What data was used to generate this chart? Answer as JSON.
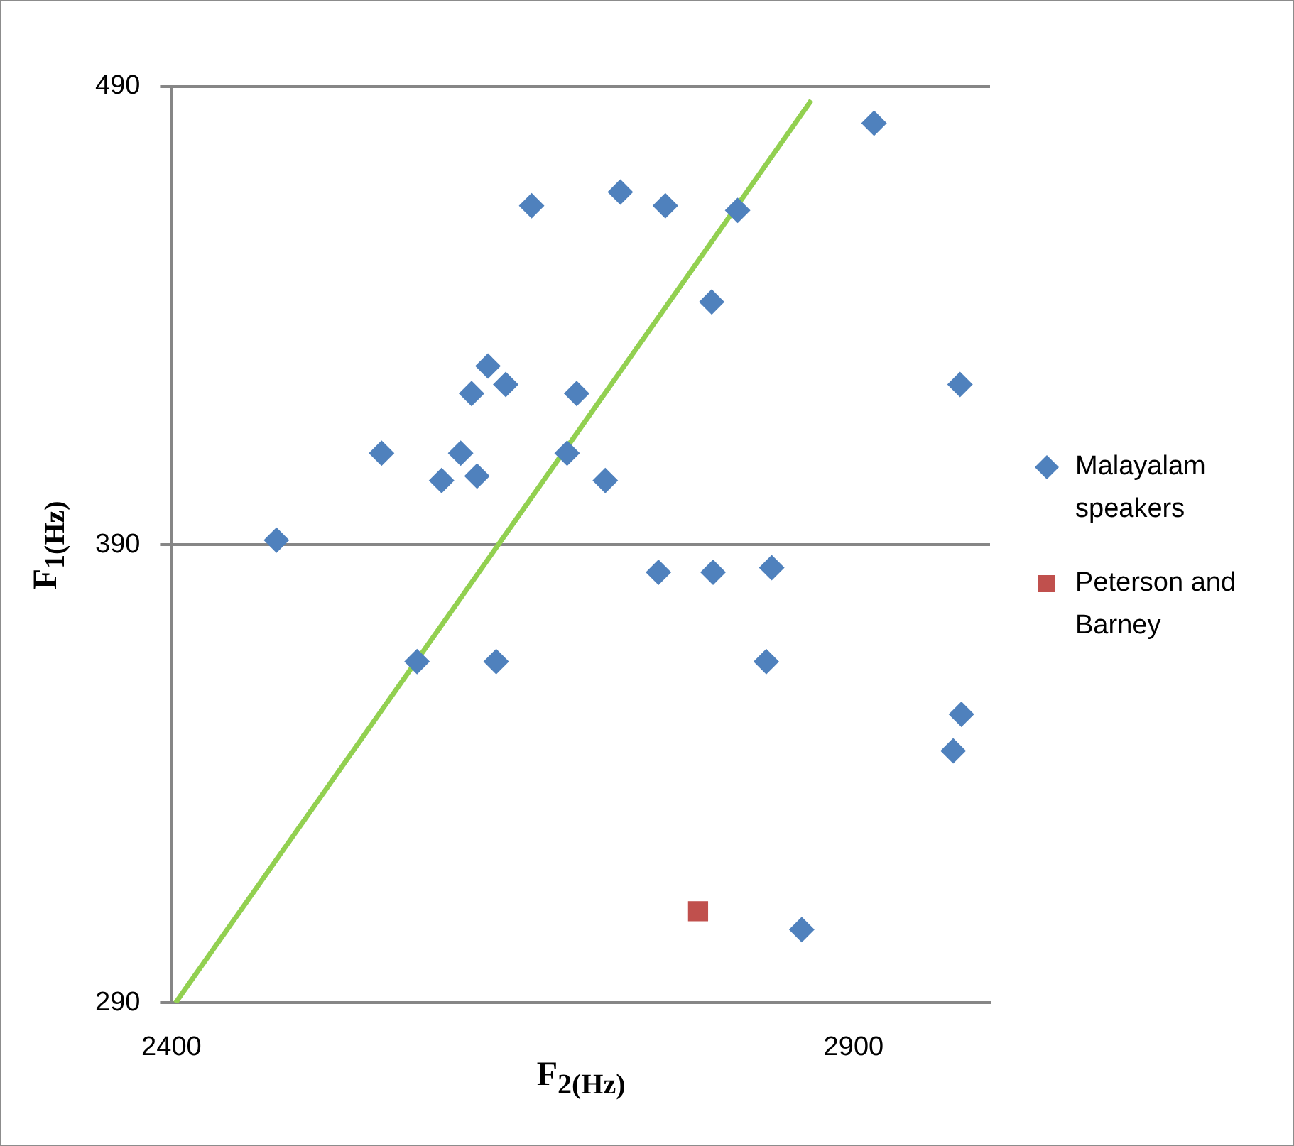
{
  "chart_data": {
    "type": "scatter",
    "xlabel": "F$_{2(Hz)}$",
    "ylabel": "F$_{1(Hz)}$",
    "xlim": [
      2400,
      3000
    ],
    "ylim": [
      290,
      490
    ],
    "xticks": [
      2400,
      2900
    ],
    "yticks": [
      290,
      390,
      490
    ],
    "grid": "y",
    "legend": "right",
    "series": [
      {
        "name": "Malayalam speakers",
        "color": "#4f81bd",
        "marker": "diamond",
        "x": [
          2477,
          2554,
          2580,
          2598,
          2612,
          2620,
          2624,
          2632,
          2638,
          2645,
          2664,
          2690,
          2697,
          2718,
          2729,
          2757,
          2762,
          2796,
          2797,
          2815,
          2836,
          2840,
          2862,
          2915,
          2978,
          2979,
          2973
        ],
        "values": [
          391,
          410,
          364.5,
          404,
          410,
          423,
          405,
          429,
          364.5,
          425,
          464,
          410,
          423,
          404,
          467,
          384,
          464,
          443,
          384,
          463,
          364.5,
          385,
          306,
          482,
          425,
          353,
          345
        ]
      },
      {
        "name": "Peterson and Barney",
        "color": "#c0504d",
        "marker": "square",
        "x": [
          2786
        ],
        "values": [
          310
        ]
      },
      {
        "type": "line",
        "color": "#92d050",
        "marker": "none",
        "x": [
          2403,
          2869
        ],
        "values": [
          290,
          487
        ]
      }
    ]
  }
}
